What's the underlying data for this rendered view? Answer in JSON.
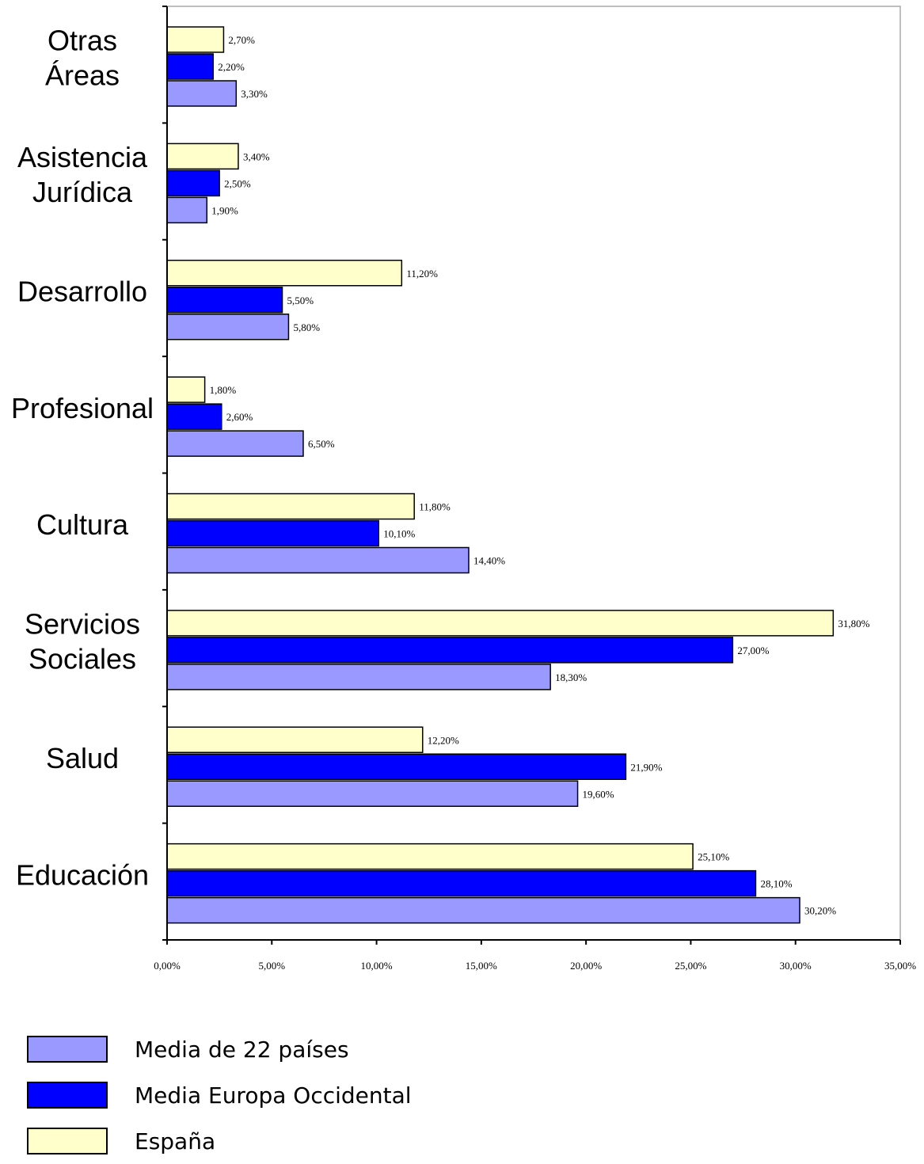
{
  "chart_data": {
    "type": "bar",
    "orientation": "horizontal",
    "categories": [
      "Otras Áreas",
      "Asistencia Jurídica",
      "Desarrollo",
      "Profesional",
      "Cultura",
      "Servicios Sociales",
      "Salud",
      "Educación"
    ],
    "category_lines": [
      [
        "Otras",
        "Áreas"
      ],
      [
        "Asistencia",
        "Jurídica"
      ],
      [
        "Desarrollo"
      ],
      [
        "Profesional"
      ],
      [
        "Cultura"
      ],
      [
        "Servicios",
        "Sociales"
      ],
      [
        "Salud"
      ],
      [
        "Educación"
      ]
    ],
    "highlight_category": "Cultura",
    "highlight_color": "#ff0000",
    "series": [
      {
        "name": "España",
        "color": "#ffffcc",
        "values": [
          2.7,
          3.4,
          11.2,
          1.8,
          11.8,
          31.8,
          12.2,
          25.1
        ],
        "labels": [
          "2,70%",
          "3,40%",
          "11,20%",
          "1,80%",
          "11,80%",
          "31,80%",
          "12,20%",
          "25,10%"
        ]
      },
      {
        "name": "Media Europa Occidental",
        "color": "#0000ff",
        "values": [
          2.2,
          2.5,
          5.5,
          2.6,
          10.1,
          27.0,
          21.9,
          28.1
        ],
        "labels": [
          "2,20%",
          "2,50%",
          "5,50%",
          "2,60%",
          "10,10%",
          "27,00%",
          "21,90%",
          "28,10%"
        ]
      },
      {
        "name": "Media de 22 países",
        "color": "#9999ff",
        "values": [
          3.3,
          1.9,
          5.8,
          6.5,
          14.4,
          18.3,
          19.6,
          30.2
        ],
        "labels": [
          "3,30%",
          "1,90%",
          "5,80%",
          "6,50%",
          "14,40%",
          "18,30%",
          "19,60%",
          "30,20%"
        ]
      }
    ],
    "xlim": [
      0,
      35
    ],
    "x_ticks": [
      0,
      5,
      10,
      15,
      20,
      25,
      30,
      35
    ],
    "x_tick_labels": [
      "0,00%",
      "5,00%",
      "10,00%",
      "15,00%",
      "20,00%",
      "25,00%",
      "30,00%",
      "35,00%"
    ],
    "grid": false,
    "legend_position": "bottom-left"
  },
  "legend": [
    {
      "label": "Media de 22 países",
      "color": "#9999ff"
    },
    {
      "label": "Media Europa Occidental",
      "color": "#0000ff"
    },
    {
      "label": "España",
      "color": "#ffffcc"
    }
  ]
}
